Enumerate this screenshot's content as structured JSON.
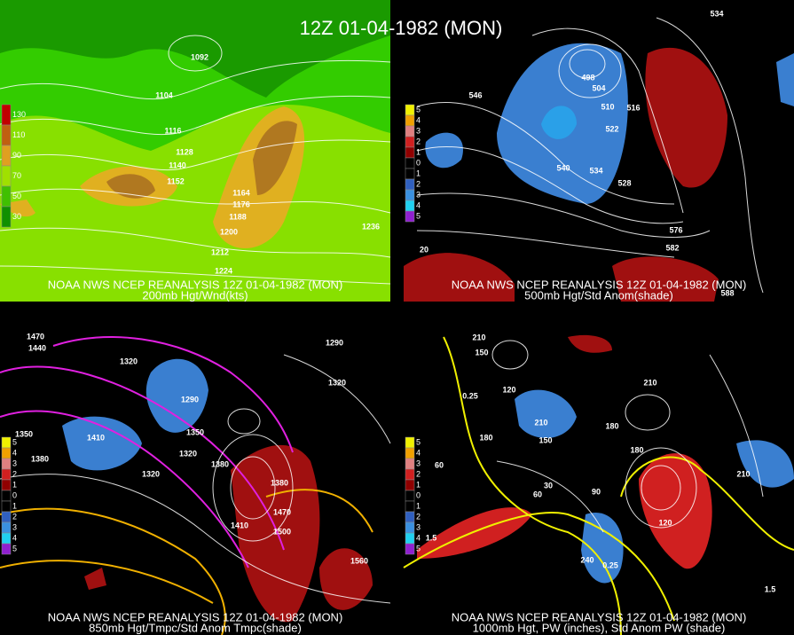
{
  "title": "12Z 01-04-1982 (MON)",
  "panels": [
    {
      "source": "NOAA NWS NCEP REANALYSIS 12Z 01-04-1982 (MON)",
      "caption": "200mb Hgt/Wnd(kts)",
      "legend": [
        130,
        110,
        90,
        70,
        50,
        30
      ],
      "contour_labels": [
        1092,
        1104,
        1116,
        1128,
        1140,
        1152,
        1164,
        1176,
        1188,
        1200,
        1212,
        1224,
        1236
      ]
    },
    {
      "source": "NOAA NWS NCEP REANALYSIS 12Z 01-04-1982 (MON)",
      "caption": "500mb Hgt/Std Anom(shade)",
      "legend": [
        5,
        4,
        3,
        2,
        1,
        0,
        1,
        2,
        3,
        4,
        5
      ],
      "contour_labels": [
        534,
        546,
        498,
        504,
        510,
        516,
        522,
        540,
        534,
        528,
        576,
        582,
        588,
        20
      ]
    },
    {
      "source": "NOAA NWS NCEP REANALYSIS 12Z 01-04-1982 (MON)",
      "caption": "850mb Hgt/Tmpc/Std Anom Tmpc(shade)",
      "legend": [
        5,
        4,
        3,
        2,
        1,
        0,
        1,
        2,
        3,
        4,
        5
      ],
      "contour_labels": [
        1470,
        1440,
        1320,
        1290,
        1320,
        1350,
        1380,
        1410,
        1320,
        1320,
        1380,
        1380,
        1470,
        1410,
        1500,
        1560,
        1350,
        1290
      ]
    },
    {
      "source": "NOAA NWS NCEP REANALYSIS 12Z 01-04-1982 (MON)",
      "caption": "1000mb Hgt, PW (inches), Std Anom PW (shade)",
      "legend": [
        5,
        4,
        3,
        2,
        1,
        0,
        1,
        2,
        3,
        4,
        5
      ],
      "contour_labels": [
        210,
        150,
        120,
        180,
        210,
        150,
        180,
        210,
        180,
        60,
        90,
        120,
        0.25,
        0.25,
        1.5,
        1.5,
        210,
        30,
        60,
        240
      ]
    }
  ]
}
